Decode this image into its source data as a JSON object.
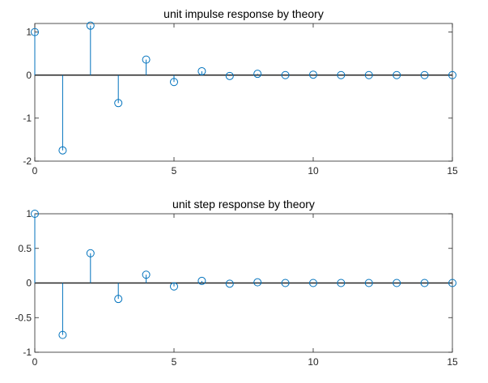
{
  "chart_data": [
    {
      "type": "stem",
      "title": "unit impulse response by theory",
      "xlabel": "",
      "ylabel": "",
      "xlim": [
        0,
        15
      ],
      "ylim": [
        -2,
        1.2
      ],
      "xticks": [
        "0",
        "5",
        "10",
        "15"
      ],
      "yticks": [
        "1",
        "0",
        "-1",
        "-2"
      ],
      "grid": false,
      "color": "#0072BD",
      "x": [
        0,
        1,
        2,
        3,
        4,
        5,
        6,
        7,
        8,
        9,
        10,
        11,
        12,
        13,
        14,
        15
      ],
      "values": [
        1,
        -1.75,
        1.15,
        -0.65,
        0.36,
        -0.16,
        0.09,
        -0.02,
        0.03,
        0.0,
        0.01,
        0.0,
        0.0,
        0.0,
        0.0,
        0.0
      ]
    },
    {
      "type": "stem",
      "title": "unit step response by theory",
      "xlabel": "",
      "ylabel": "",
      "xlim": [
        0,
        15
      ],
      "ylim": [
        -1,
        1
      ],
      "xticks": [
        "0",
        "5",
        "10",
        "15"
      ],
      "yticks": [
        "1",
        "0.5",
        "0",
        "-0.5",
        "-1"
      ],
      "grid": false,
      "color": "#0072BD",
      "x": [
        0,
        1,
        2,
        3,
        4,
        5,
        6,
        7,
        8,
        9,
        10,
        11,
        12,
        13,
        14,
        15
      ],
      "values": [
        1,
        -0.75,
        0.43,
        -0.23,
        0.12,
        -0.05,
        0.03,
        -0.01,
        0.01,
        0.0,
        0.0,
        0.0,
        0.0,
        0.0,
        0.0,
        0.0
      ]
    }
  ]
}
